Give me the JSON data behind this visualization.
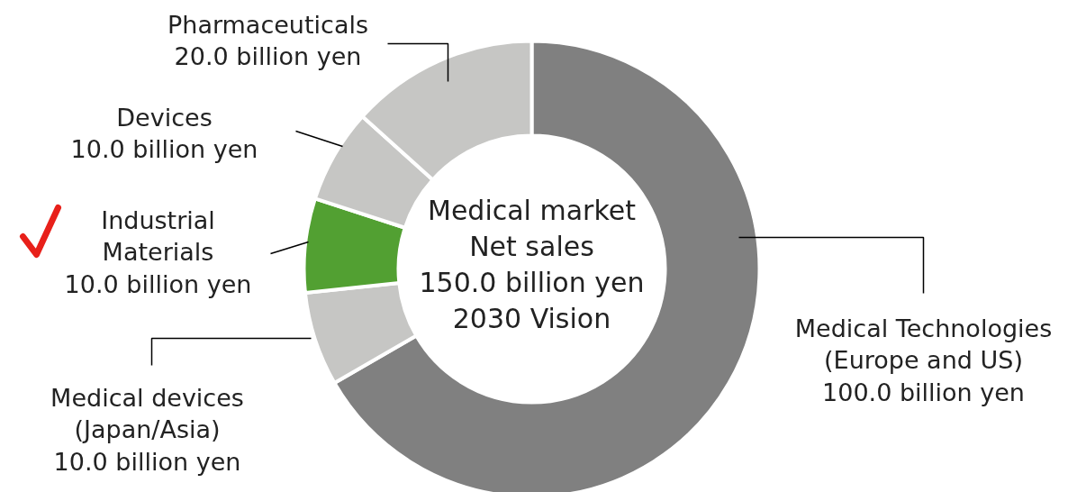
{
  "chart_data": {
    "type": "donut",
    "categories": [
      "Medical Technologies\n(Europe and US)",
      "Medical devices\n(Japan/Asia)",
      "Industrial\nMaterials",
      "Devices",
      "Pharmaceuticals"
    ],
    "values": [
      100.0,
      10.0,
      10.0,
      10.0,
      20.0
    ],
    "colors": [
      "#808080",
      "#c6c6c4",
      "#52a032",
      "#c6c6c4",
      "#c6c6c4"
    ],
    "value_labels": [
      "100.0 billion yen",
      "10.0 billion yen",
      "10.0 billion yen",
      "10.0 billion yen",
      "20.0 billion yen"
    ],
    "annotations": [
      "Medical market\nNet sales\n150.0 billion yen\n2030 Vision"
    ]
  }
}
